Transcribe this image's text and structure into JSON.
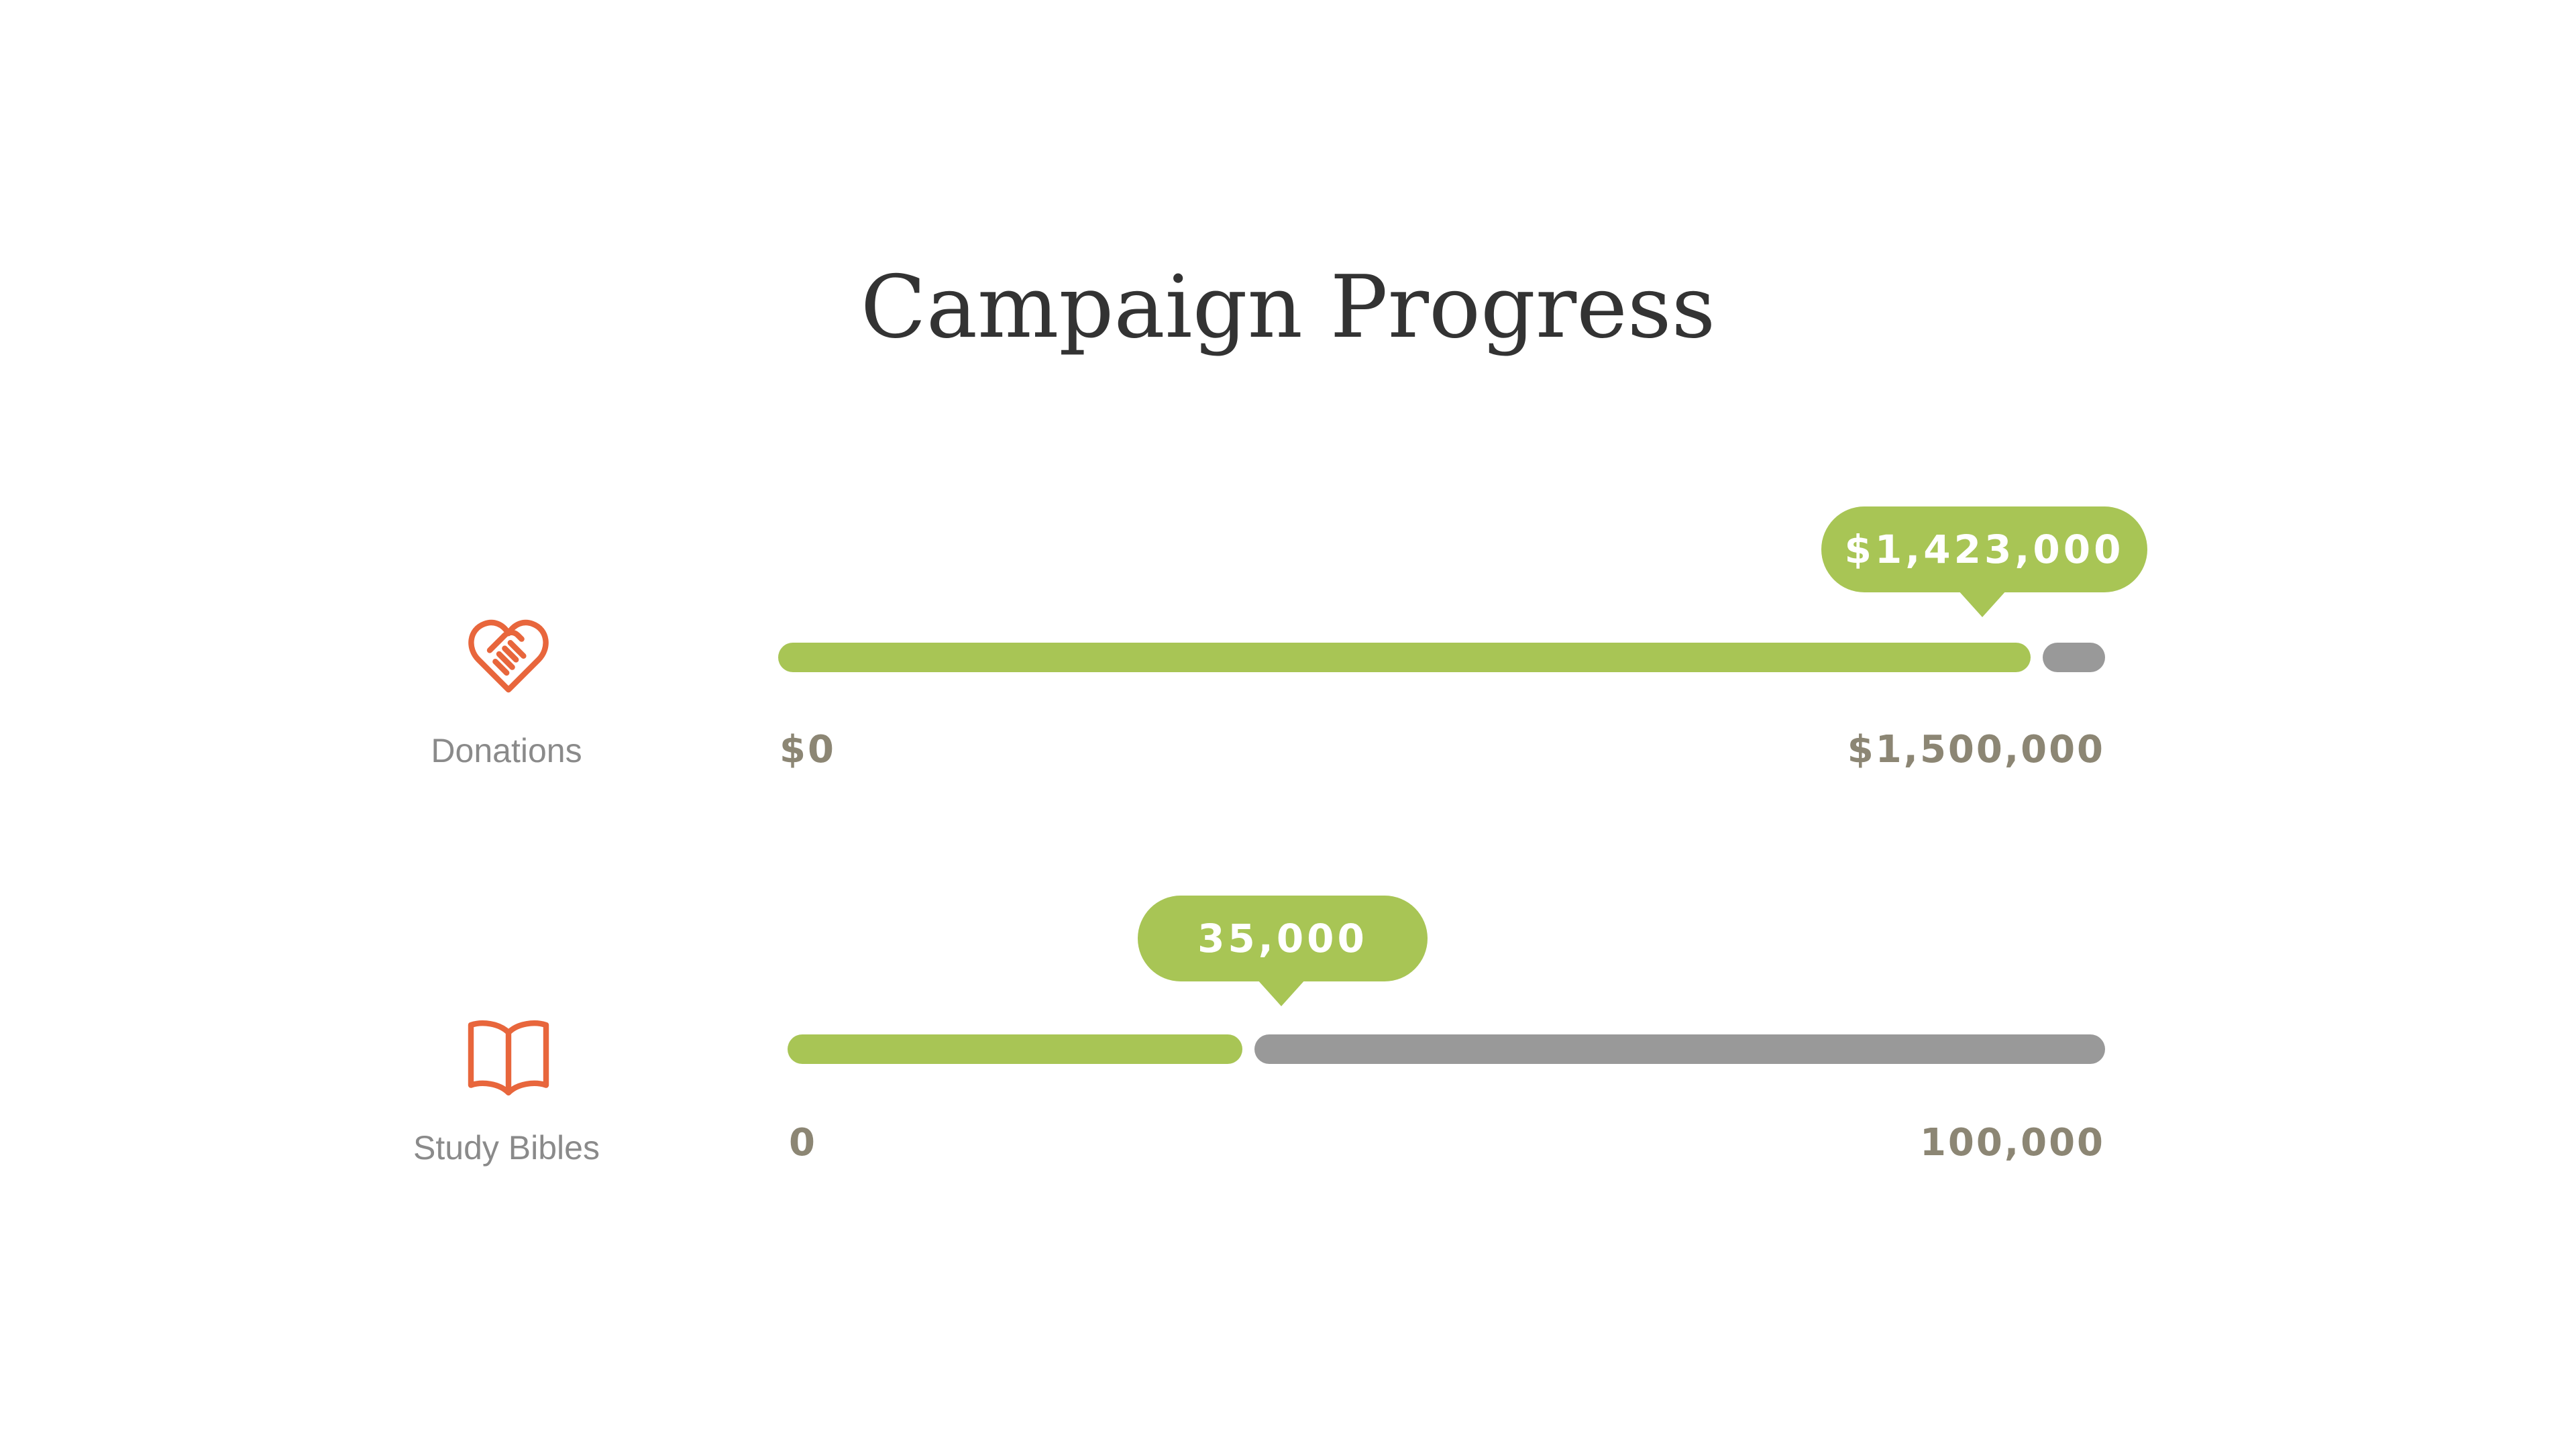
{
  "title": "Campaign Progress",
  "colors": {
    "progress": "#a8c555",
    "remaining": "#999999",
    "icon": "#e8663c",
    "label": "#8a8a8a",
    "axis": "#8c8674",
    "bubble_text": "#ffffff"
  },
  "metrics": [
    {
      "label": "Donations",
      "icon": "handshake-heart-icon",
      "min_label": "$0",
      "max_label": "$1,500,000",
      "value_label": "$1,423,000"
    },
    {
      "label": "Study Bibles",
      "icon": "open-book-icon",
      "min_label": "0",
      "max_label": "100,000",
      "value_label": "35,000"
    }
  ],
  "chart_data": {
    "type": "bar",
    "orientation": "horizontal",
    "title": "Campaign Progress",
    "categories": [
      "Donations",
      "Study Bibles"
    ],
    "values": [
      1423000,
      35000
    ],
    "goals": [
      1500000,
      100000
    ],
    "xlim": [
      [
        0,
        1500000
      ],
      [
        0,
        100000
      ]
    ],
    "grid": false
  }
}
